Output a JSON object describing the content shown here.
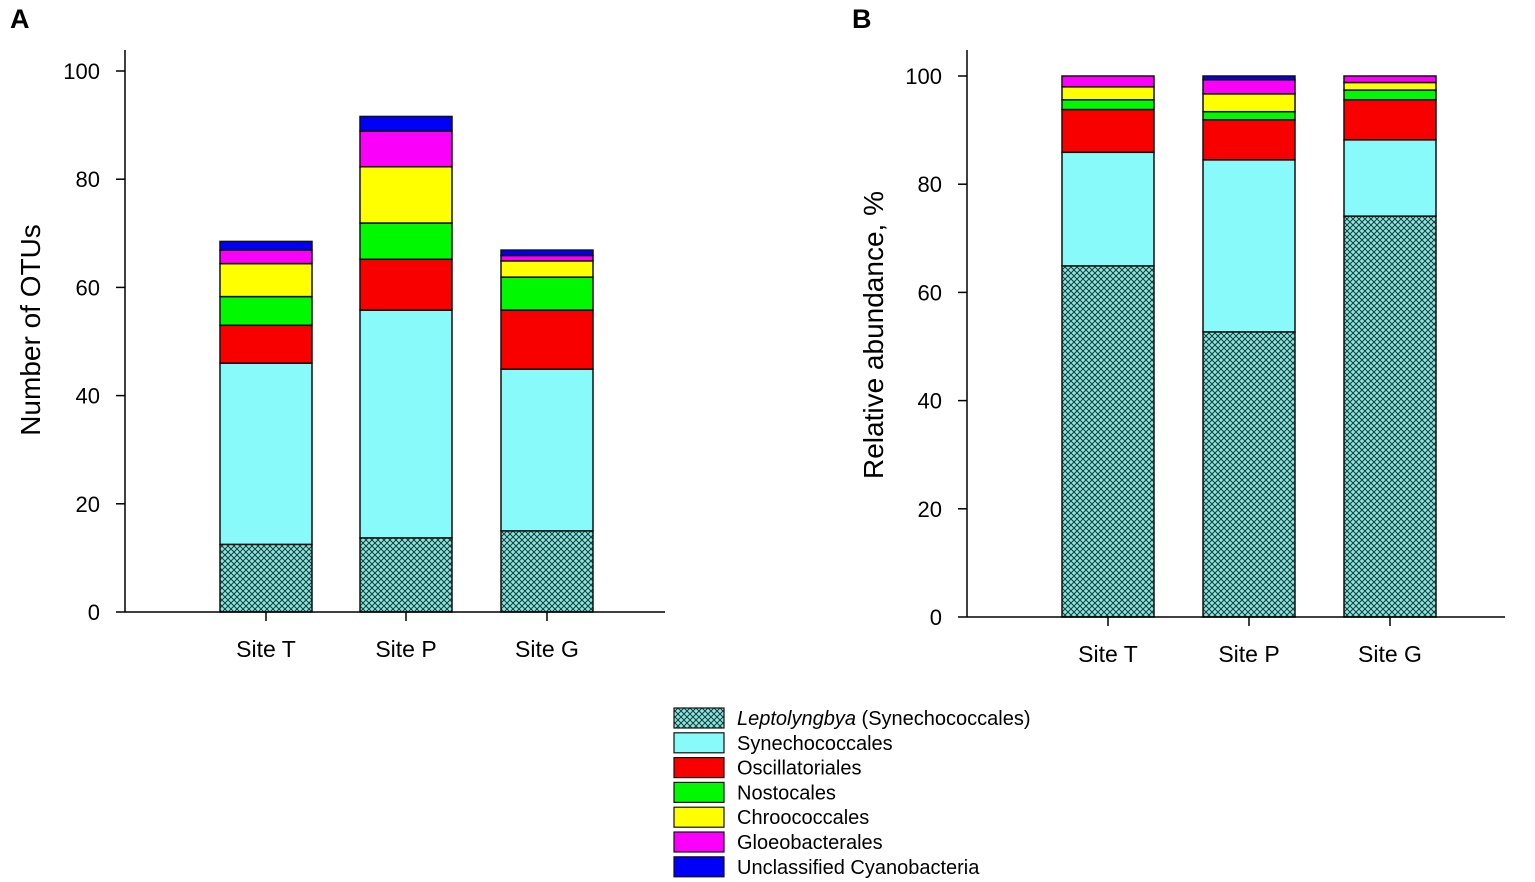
{
  "chart_data": [
    {
      "panel": "A",
      "type": "bar",
      "stacked": true,
      "title": "",
      "xlabel": "",
      "ylabel": "Number of OTUs",
      "ylim": [
        0,
        100
      ],
      "yticks": [
        0,
        20,
        40,
        60,
        80,
        100
      ],
      "categories": [
        "Site T",
        "Site P",
        "Site G"
      ],
      "series": [
        {
          "name": "Leptolyngbya (Synechococcales)",
          "values": [
            12.5,
            13.7,
            15.0
          ]
        },
        {
          "name": "Synechococcales",
          "values": [
            33.5,
            42.1,
            29.9
          ]
        },
        {
          "name": "Oscillatoriales",
          "values": [
            7.0,
            9.4,
            10.9
          ]
        },
        {
          "name": "Nostocales",
          "values": [
            5.3,
            6.7,
            6.1
          ]
        },
        {
          "name": "Chroococcales",
          "values": [
            6.1,
            10.4,
            3.0
          ]
        },
        {
          "name": "Gloeobacterales",
          "values": [
            2.5,
            6.6,
            1.0
          ]
        },
        {
          "name": "Unclassified Cyanobacteria",
          "values": [
            1.6,
            2.7,
            1.0
          ]
        }
      ]
    },
    {
      "panel": "B",
      "type": "bar",
      "stacked": true,
      "title": "",
      "xlabel": "",
      "ylabel": "Relative abundance, %",
      "ylim": [
        0,
        100
      ],
      "yticks": [
        0,
        20,
        40,
        60,
        80,
        100
      ],
      "categories": [
        "Site T",
        "Site P",
        "Site G"
      ],
      "series": [
        {
          "name": "Leptolyngbya (Synechococcales)",
          "values": [
            64.9,
            52.7,
            74.1
          ]
        },
        {
          "name": "Synechococcales",
          "values": [
            21.0,
            31.8,
            14.1
          ]
        },
        {
          "name": "Oscillatoriales",
          "values": [
            7.9,
            7.4,
            7.4
          ]
        },
        {
          "name": "Nostocales",
          "values": [
            1.8,
            1.5,
            1.8
          ]
        },
        {
          "name": "Chroococcales",
          "values": [
            2.4,
            3.3,
            1.4
          ]
        },
        {
          "name": "Gloeobacterales",
          "values": [
            2.0,
            2.6,
            1.2
          ]
        },
        {
          "name": "Unclassified Cyanobacteria",
          "values": [
            0.0,
            0.7,
            0.0
          ]
        }
      ]
    }
  ],
  "legend": {
    "placement": "bottom-center",
    "items": [
      {
        "italic": "Leptolyngbya",
        "rest": " (Synechococcales)",
        "color": "#88fafa",
        "hatched": true
      },
      {
        "italic": "",
        "rest": "Synechococcales",
        "color": "#88fafa",
        "hatched": false
      },
      {
        "italic": "",
        "rest": "Oscillatoriales",
        "color": "#f90000",
        "hatched": false
      },
      {
        "italic": "",
        "rest": "Nostocales",
        "color": "#00f800",
        "hatched": false
      },
      {
        "italic": "",
        "rest": "Chroococcales",
        "color": "#ffff00",
        "hatched": false
      },
      {
        "italic": "",
        "rest": "Gloeobacterales",
        "color": "#fa00fa",
        "hatched": false
      },
      {
        "italic": "",
        "rest": "Unclassified Cyanobacteria",
        "color": "#0000fa",
        "hatched": false
      }
    ]
  }
}
